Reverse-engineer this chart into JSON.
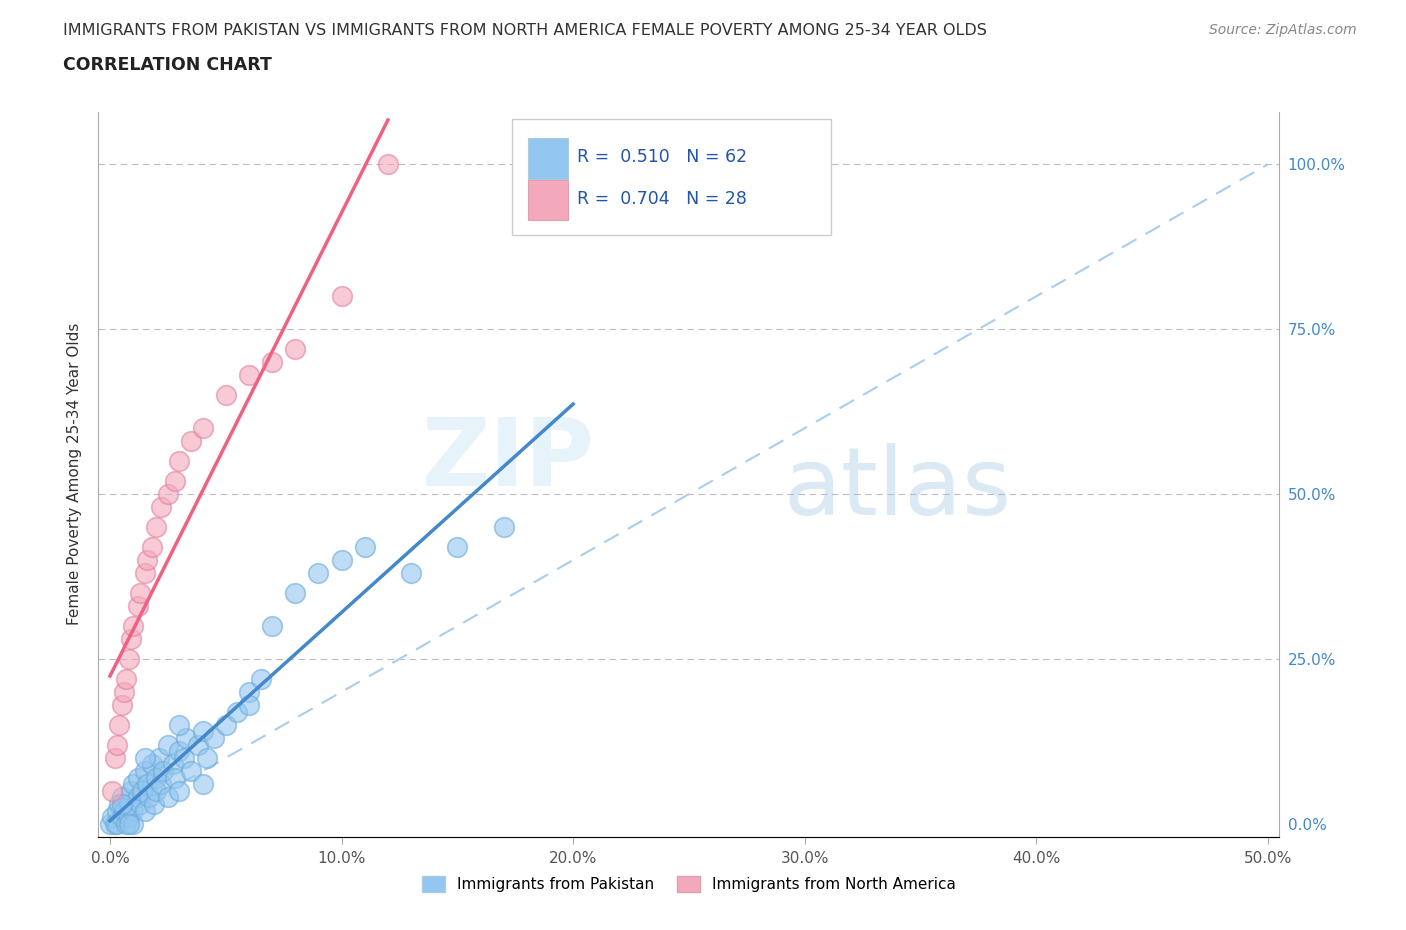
{
  "title_line1": "IMMIGRANTS FROM PAKISTAN VS IMMIGRANTS FROM NORTH AMERICA FEMALE POVERTY AMONG 25-34 YEAR OLDS",
  "title_line2": "CORRELATION CHART",
  "source_text": "Source: ZipAtlas.com",
  "ylabel": "Female Poverty Among 25-34 Year Olds",
  "xlim": [
    0.0,
    0.5
  ],
  "ylim": [
    -0.02,
    1.08
  ],
  "xtick_labels": [
    "0.0%",
    "10.0%",
    "20.0%",
    "30.0%",
    "40.0%",
    "50.0%"
  ],
  "xtick_vals": [
    0.0,
    0.1,
    0.2,
    0.3,
    0.4,
    0.5
  ],
  "ytick_labels": [
    "0.0%",
    "25.0%",
    "50.0%",
    "75.0%",
    "100.0%"
  ],
  "ytick_vals": [
    0.0,
    0.25,
    0.5,
    0.75,
    1.0
  ],
  "watermark_zip": "ZIP",
  "watermark_atlas": "atlas",
  "legend_text1": "R =  0.510   N = 62",
  "legend_text2": "R =  0.704   N = 28",
  "legend_label1": "Immigrants from Pakistan",
  "legend_label2": "Immigrants from North America",
  "color_pakistan": "#93c6f0",
  "color_pakistan_edge": "#6aaad8",
  "color_north_america": "#f4a8bc",
  "color_north_america_edge": "#e080a0",
  "color_regression_pakistan": "#4488cc",
  "color_regression_north_america": "#f06080",
  "color_diagonal": "#aaccee",
  "color_grid": "#bbbbcc",
  "pakistan_x": [
    0.0,
    0.001,
    0.002,
    0.003,
    0.003,
    0.004,
    0.005,
    0.005,
    0.006,
    0.007,
    0.008,
    0.008,
    0.009,
    0.01,
    0.01,
    0.01,
    0.012,
    0.012,
    0.013,
    0.014,
    0.015,
    0.015,
    0.016,
    0.017,
    0.018,
    0.019,
    0.02,
    0.02,
    0.021,
    0.022,
    0.023,
    0.025,
    0.025,
    0.027,
    0.028,
    0.03,
    0.03,
    0.032,
    0.033,
    0.035,
    0.038,
    0.04,
    0.04,
    0.042,
    0.045,
    0.05,
    0.055,
    0.06,
    0.065,
    0.07,
    0.08,
    0.09,
    0.1,
    0.11,
    0.13,
    0.15,
    0.17,
    0.005,
    0.008,
    0.015,
    0.03,
    0.06
  ],
  "pakistan_y": [
    0.0,
    0.01,
    0.0,
    0.02,
    0.0,
    0.03,
    0.01,
    0.04,
    0.02,
    0.0,
    0.03,
    0.01,
    0.05,
    0.02,
    0.06,
    0.0,
    0.04,
    0.07,
    0.03,
    0.05,
    0.08,
    0.02,
    0.06,
    0.04,
    0.09,
    0.03,
    0.07,
    0.05,
    0.1,
    0.06,
    0.08,
    0.12,
    0.04,
    0.09,
    0.07,
    0.11,
    0.05,
    0.1,
    0.13,
    0.08,
    0.12,
    0.14,
    0.06,
    0.1,
    0.13,
    0.15,
    0.17,
    0.2,
    0.22,
    0.3,
    0.35,
    0.38,
    0.4,
    0.42,
    0.38,
    0.42,
    0.45,
    0.03,
    0.0,
    0.1,
    0.15,
    0.18
  ],
  "north_america_x": [
    0.001,
    0.002,
    0.003,
    0.004,
    0.005,
    0.006,
    0.007,
    0.008,
    0.009,
    0.01,
    0.012,
    0.013,
    0.015,
    0.016,
    0.018,
    0.02,
    0.022,
    0.025,
    0.028,
    0.03,
    0.035,
    0.04,
    0.05,
    0.06,
    0.07,
    0.08,
    0.1,
    0.12
  ],
  "north_america_y": [
    0.05,
    0.1,
    0.12,
    0.15,
    0.18,
    0.2,
    0.22,
    0.25,
    0.28,
    0.3,
    0.33,
    0.35,
    0.38,
    0.4,
    0.42,
    0.45,
    0.48,
    0.5,
    0.52,
    0.55,
    0.58,
    0.6,
    0.65,
    0.68,
    0.7,
    0.72,
    0.8,
    1.0
  ]
}
